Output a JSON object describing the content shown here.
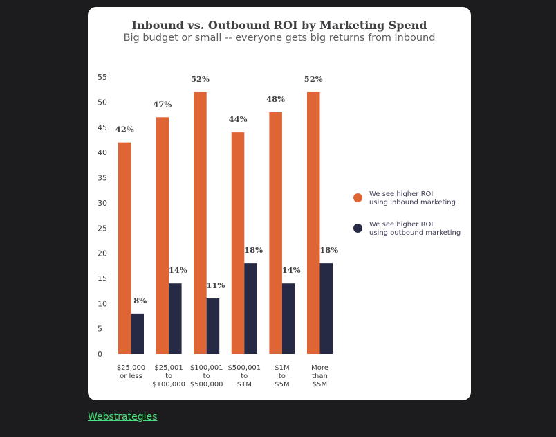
{
  "chart_data": {
    "type": "bar",
    "title": "Inbound vs. Outbound ROI by Marketing Spend",
    "subtitle": "Big budget or small -- everyone gets big returns from inbound",
    "categories": [
      [
        "$25,000",
        "or less"
      ],
      [
        "$25,001",
        "to",
        "$100,000"
      ],
      [
        "$100,001",
        "to",
        "$500,000"
      ],
      [
        "$500,001",
        "to",
        "$1M"
      ],
      [
        "$1M",
        "to",
        "$5M"
      ],
      [
        "More",
        "than",
        "$5M"
      ]
    ],
    "series": [
      {
        "name_lines": [
          "We see higher ROI",
          "using inbound marketing"
        ],
        "color": "#e06535",
        "values": [
          42,
          47,
          52,
          44,
          48,
          52
        ],
        "labels": [
          "42%",
          "47%",
          "52%",
          "44%",
          "48%",
          "52%"
        ]
      },
      {
        "name_lines": [
          "We see higher ROI",
          "using outbound marketing"
        ],
        "color": "#262a45",
        "values": [
          8,
          14,
          11,
          18,
          14,
          18
        ],
        "labels": [
          "8%",
          "14%",
          "11%",
          "18%",
          "14%",
          "18%"
        ]
      }
    ],
    "yticks": [
      0,
      5,
      10,
      15,
      20,
      25,
      30,
      35,
      40,
      45,
      50,
      55
    ],
    "ylim": [
      0,
      55
    ],
    "grid": false,
    "legend_position": "right"
  },
  "footer": {
    "source_link_text": "Webstrategies"
  }
}
